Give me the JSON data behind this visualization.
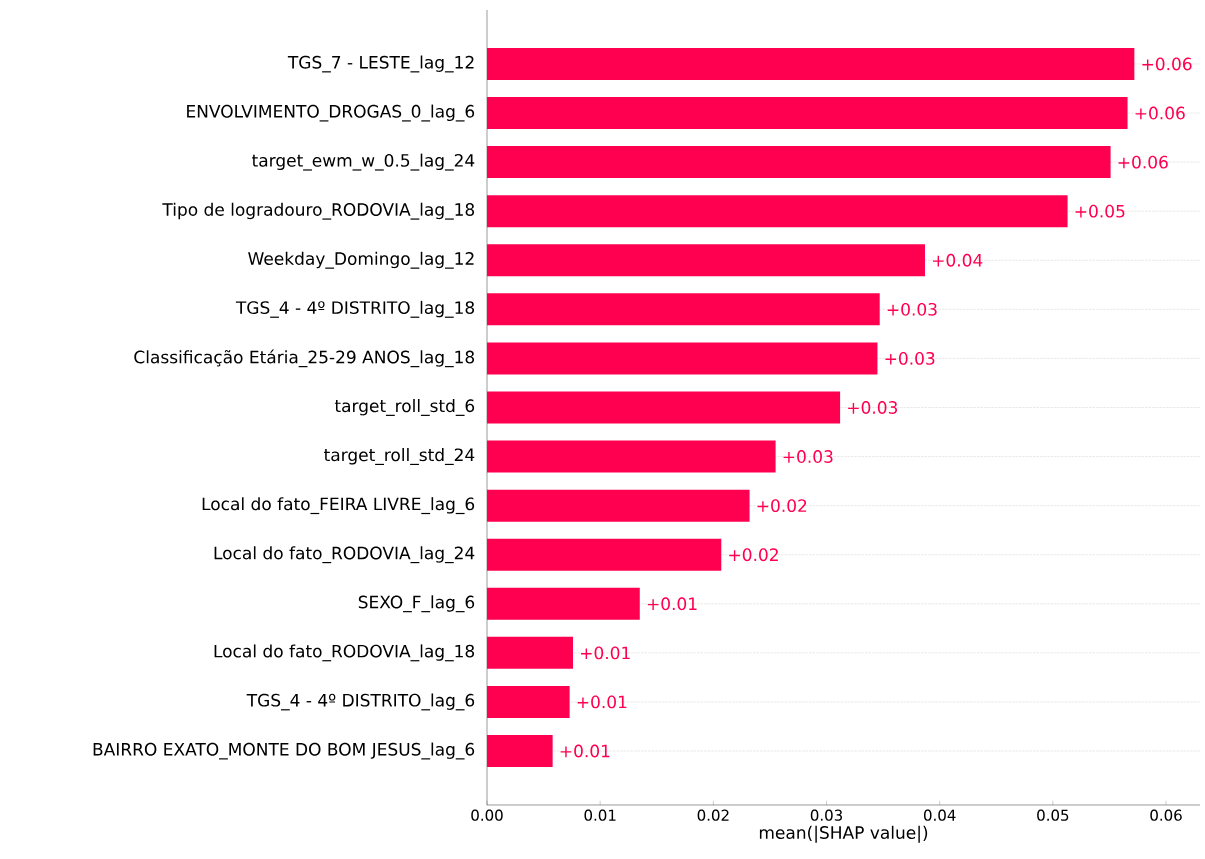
{
  "chart_data": {
    "type": "bar",
    "orientation": "horizontal",
    "xlabel": "mean(|SHAP value|)",
    "categories": [
      "TGS_7 - LESTE_lag_12",
      "ENVOLVIMENTO_DROGAS_0_lag_6",
      "target_ewm_w_0.5_lag_24",
      "Tipo de logradouro_RODOVIA_lag_18",
      "Weekday_Domingo_lag_12",
      "TGS_4 - 4º DISTRITO_lag_18",
      "Classificação Etária_25-29 ANOS_lag_18",
      "target_roll_std_6",
      "target_roll_std_24",
      "Local do fato_FEIRA LIVRE_lag_6",
      "Local do fato_RODOVIA_lag_24",
      "SEXO_F_lag_6",
      "Local do fato_RODOVIA_lag_18",
      "TGS_4 - 4º DISTRITO_lag_6",
      "BAIRRO EXATO_MONTE DO BOM JESUS_lag_6"
    ],
    "values": [
      0.0572,
      0.0566,
      0.0551,
      0.0513,
      0.0387,
      0.0347,
      0.0345,
      0.0312,
      0.0255,
      0.0232,
      0.0207,
      0.0135,
      0.0076,
      0.0073,
      0.0058
    ],
    "value_labels": [
      "+0.06",
      "+0.06",
      "+0.06",
      "+0.05",
      "+0.04",
      "+0.03",
      "+0.03",
      "+0.03",
      "+0.03",
      "+0.02",
      "+0.02",
      "+0.01",
      "+0.01",
      "+0.01",
      "+0.01"
    ],
    "color": "#ff0051",
    "xlim": [
      0,
      0.063
    ],
    "xticks": [
      {
        "value": 0,
        "label": "0.00"
      },
      {
        "value": 0.01,
        "label": "0.01"
      },
      {
        "value": 0.02,
        "label": "0.02"
      },
      {
        "value": 0.03,
        "label": "0.03"
      },
      {
        "value": 0.04,
        "label": "0.04"
      },
      {
        "value": 0.05,
        "label": "0.05"
      },
      {
        "value": 0.06,
        "label": "0.06"
      }
    ],
    "grid": "y"
  }
}
